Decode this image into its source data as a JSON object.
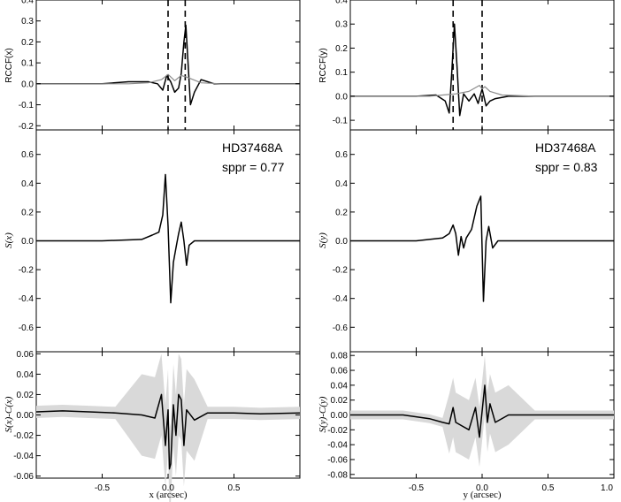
{
  "chart_data": [
    {
      "type": "line",
      "panel": "RCCF x",
      "ylabel": "RCCF(x)",
      "xlim": [
        -1.0,
        1.0
      ],
      "ylim": [
        -0.22,
        0.4
      ],
      "yticks": [
        "0.4",
        "0.3",
        "0.2",
        "0.1",
        "0.0",
        "-0.1",
        "-0.2"
      ],
      "yticks_v": [
        0.4,
        0.3,
        0.2,
        0.1,
        0.0,
        -0.1,
        -0.2
      ],
      "dashed_x": [
        0.0,
        0.13
      ],
      "series": [
        {
          "color": "#000000",
          "x": [
            -1.0,
            -0.5,
            -0.3,
            -0.15,
            -0.08,
            -0.04,
            -0.01,
            0.02,
            0.05,
            0.08,
            0.1,
            0.12,
            0.135,
            0.15,
            0.17,
            0.2,
            0.25,
            0.35,
            0.5,
            1.0
          ],
          "y": [
            0.0,
            0.0,
            0.01,
            0.01,
            0.0,
            -0.03,
            0.04,
            0.01,
            -0.04,
            -0.02,
            0.05,
            0.2,
            0.28,
            0.12,
            -0.1,
            -0.04,
            0.02,
            0.0,
            0.0,
            0.0
          ]
        },
        {
          "color": "#8c8c8c",
          "x": [
            -1.0,
            -0.3,
            -0.15,
            -0.05,
            0.0,
            0.05,
            0.1,
            0.15,
            0.25,
            0.4,
            1.0
          ],
          "y": [
            0.0,
            0.0,
            0.005,
            0.02,
            0.045,
            0.015,
            0.04,
            0.03,
            0.005,
            0.0,
            0.0
          ]
        }
      ]
    },
    {
      "type": "line",
      "panel": "RCCF y",
      "ylabel": "RCCF(y)",
      "xlim": [
        -1.0,
        1.0
      ],
      "ylim": [
        -0.14,
        0.4
      ],
      "yticks": [
        "0.4",
        "0.3",
        "0.2",
        "0.1",
        "0.0",
        "-0.1"
      ],
      "yticks_v": [
        0.4,
        0.3,
        0.2,
        0.1,
        0.0,
        -0.1
      ],
      "dashed_x": [
        -0.22,
        0.0
      ],
      "series": [
        {
          "color": "#000000",
          "x": [
            -1.0,
            -0.5,
            -0.35,
            -0.28,
            -0.25,
            -0.23,
            -0.21,
            -0.19,
            -0.17,
            -0.14,
            -0.1,
            -0.06,
            -0.03,
            0.0,
            0.03,
            0.06,
            0.1,
            0.2,
            0.4,
            1.0
          ],
          "y": [
            0.0,
            0.0,
            0.005,
            -0.02,
            -0.07,
            0.1,
            0.3,
            0.12,
            -0.08,
            0.01,
            -0.02,
            0.01,
            -0.03,
            0.03,
            -0.04,
            -0.02,
            -0.01,
            0.0,
            0.0,
            0.0
          ]
        },
        {
          "color": "#8c8c8c",
          "x": [
            -1.0,
            -0.4,
            -0.2,
            -0.1,
            -0.02,
            0.0,
            0.02,
            0.06,
            0.15,
            0.4,
            1.0
          ],
          "y": [
            0.0,
            0.0,
            0.01,
            0.02,
            0.045,
            0.03,
            0.04,
            0.02,
            0.005,
            0.0,
            0.0
          ]
        }
      ]
    },
    {
      "type": "line",
      "panel": "S(x)",
      "ylabel": "S(x)",
      "xlim": [
        -1.0,
        1.0
      ],
      "ylim": [
        -0.77,
        0.77
      ],
      "yticks": [
        "0.6",
        "0.4",
        "0.2",
        "0.0",
        "-0.2",
        "-0.4",
        "-0.6"
      ],
      "yticks_v": [
        0.6,
        0.4,
        0.2,
        0.0,
        -0.2,
        -0.4,
        -0.6
      ],
      "annotation": [
        "HD37468A",
        "sppr = 0.77"
      ],
      "series": [
        {
          "color": "#000000",
          "x": [
            -1.0,
            -0.5,
            -0.2,
            -0.12,
            -0.07,
            -0.04,
            -0.02,
            0.0,
            0.02,
            0.04,
            0.06,
            0.08,
            0.1,
            0.12,
            0.14,
            0.16,
            0.2,
            0.3,
            0.5,
            1.0
          ],
          "y": [
            0.0,
            0.0,
            0.01,
            0.04,
            0.06,
            0.18,
            0.46,
            0.1,
            -0.43,
            -0.15,
            -0.05,
            0.05,
            0.13,
            0.0,
            -0.17,
            -0.03,
            0.0,
            0.0,
            0.0,
            0.0
          ]
        }
      ]
    },
    {
      "type": "line",
      "panel": "S(y)",
      "ylabel": "S(y)",
      "xlim": [
        -1.0,
        1.0
      ],
      "ylim": [
        -0.77,
        0.77
      ],
      "yticks": [
        "0.6",
        "0.4",
        "0.2",
        "0.0",
        "-0.2",
        "-0.4",
        "-0.6"
      ],
      "yticks_v": [
        0.6,
        0.4,
        0.2,
        0.0,
        -0.2,
        -0.4,
        -0.6
      ],
      "annotation": [
        "HD37468A",
        "sppr = 0.83"
      ],
      "series": [
        {
          "color": "#000000",
          "x": [
            -1.0,
            -0.5,
            -0.3,
            -0.25,
            -0.22,
            -0.2,
            -0.18,
            -0.16,
            -0.14,
            -0.12,
            -0.08,
            -0.04,
            -0.01,
            0.01,
            0.03,
            0.05,
            0.08,
            0.12,
            0.3,
            1.0
          ],
          "y": [
            0.0,
            0.0,
            0.02,
            0.05,
            0.11,
            0.05,
            -0.1,
            0.03,
            -0.05,
            0.02,
            0.08,
            0.24,
            0.31,
            -0.42,
            0.0,
            0.1,
            -0.05,
            0.0,
            0.0,
            0.0
          ]
        }
      ]
    },
    {
      "type": "line",
      "panel": "residual x",
      "ylabel": "S(x)-C(x)",
      "xlabel": "x (arcsec)",
      "xlim": [
        -1.0,
        1.0
      ],
      "ylim": [
        -0.062,
        0.062
      ],
      "yticks": [
        "0.06",
        "0.04",
        "0.02",
        "0.00",
        "-0.02",
        "-0.04",
        "-0.06"
      ],
      "yticks_v": [
        0.06,
        0.04,
        0.02,
        0.0,
        -0.02,
        -0.04,
        -0.06
      ],
      "xticks": [
        "-0.5",
        "0.0",
        "0.5"
      ],
      "xticks_v": [
        -0.5,
        0.0,
        0.5
      ],
      "series": [
        {
          "color": "#000000",
          "x": [
            -1.0,
            -0.8,
            -0.6,
            -0.4,
            -0.2,
            -0.1,
            -0.05,
            -0.02,
            0.0,
            0.01,
            0.02,
            0.04,
            0.06,
            0.08,
            0.1,
            0.12,
            0.14,
            0.2,
            0.3,
            0.5,
            0.7,
            1.0
          ],
          "y": [
            0.003,
            0.004,
            0.003,
            0.002,
            0.0,
            -0.003,
            0.02,
            -0.03,
            0.005,
            -0.053,
            -0.048,
            0.01,
            -0.02,
            0.02,
            0.015,
            -0.03,
            0.005,
            -0.005,
            0.002,
            0.002,
            0.001,
            0.002
          ]
        }
      ]
    },
    {
      "type": "line",
      "panel": "residual y",
      "ylabel": "S(y)-C(y)",
      "xlabel": "y (arcsec)",
      "xlim": [
        -1.0,
        1.0
      ],
      "ylim": [
        -0.085,
        0.085
      ],
      "yticks": [
        "0.08",
        "0.06",
        "0.04",
        "0.02",
        "0.00",
        "-0.02",
        "-0.04",
        "-0.06",
        "-0.08"
      ],
      "yticks_v": [
        0.08,
        0.06,
        0.04,
        0.02,
        0.0,
        -0.02,
        -0.04,
        -0.06,
        -0.08
      ],
      "xticks": [
        "-0.5",
        "0.0",
        "0.5",
        "1.0"
      ],
      "xticks_v": [
        -0.5,
        0.0,
        0.5,
        1.0
      ],
      "series": [
        {
          "color": "#000000",
          "x": [
            -1.0,
            -0.6,
            -0.4,
            -0.3,
            -0.25,
            -0.22,
            -0.2,
            -0.15,
            -0.1,
            -0.05,
            -0.02,
            0.0,
            0.02,
            0.04,
            0.06,
            0.1,
            0.2,
            0.4,
            1.0
          ],
          "y": [
            0.0,
            0.0,
            -0.005,
            -0.01,
            -0.012,
            0.01,
            -0.01,
            -0.015,
            -0.02,
            0.01,
            -0.03,
            0.005,
            0.04,
            -0.01,
            0.015,
            -0.01,
            0.0,
            0.0,
            0.0
          ]
        }
      ]
    }
  ]
}
